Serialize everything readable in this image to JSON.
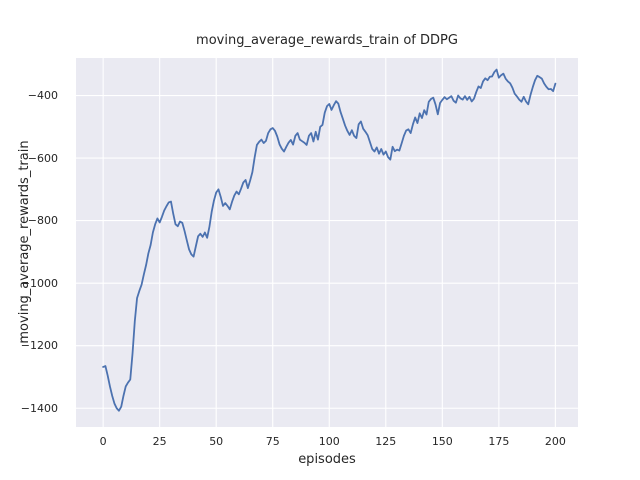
{
  "figure": {
    "title": "moving_average_rewards_train of DDPG",
    "xlabel": "episodes",
    "ylabel": "moving_average_rewards_train",
    "background_color": "#ffffff",
    "axes_background_color": "#eaeaf2",
    "grid_color": "#ffffff",
    "line_color": "#4c72b0",
    "text_color": "#262626"
  },
  "chart_data": {
    "type": "line",
    "title": "moving_average_rewards_train of DDPG",
    "xlabel": "episodes",
    "ylabel": "moving_average_rewards_train",
    "grid": true,
    "legend": false,
    "xlim": [
      -12,
      210
    ],
    "ylim": [
      -1460,
      -280
    ],
    "x_ticks": [
      0,
      25,
      50,
      75,
      100,
      125,
      150,
      175,
      200
    ],
    "y_ticks": [
      -400,
      -600,
      -800,
      -1000,
      -1200,
      -1400
    ],
    "x_tick_labels": [
      "0",
      "25",
      "50",
      "75",
      "100",
      "125",
      "150",
      "175",
      "200"
    ],
    "y_tick_labels": [
      "−400",
      "−600",
      "−800",
      "−1000",
      "−1200",
      "−1400"
    ],
    "x_start": 0,
    "x_step": 1,
    "series": [
      {
        "name": "moving_average_rewards_train",
        "values": [
          -1268,
          -1265,
          -1295,
          -1330,
          -1360,
          -1385,
          -1400,
          -1408,
          -1395,
          -1360,
          -1330,
          -1318,
          -1308,
          -1225,
          -1122,
          -1048,
          -1025,
          -1005,
          -972,
          -942,
          -905,
          -878,
          -838,
          -812,
          -793,
          -806,
          -788,
          -768,
          -754,
          -742,
          -739,
          -778,
          -812,
          -818,
          -803,
          -807,
          -833,
          -863,
          -892,
          -908,
          -915,
          -882,
          -850,
          -842,
          -852,
          -838,
          -855,
          -820,
          -772,
          -736,
          -710,
          -700,
          -724,
          -753,
          -744,
          -753,
          -764,
          -740,
          -720,
          -707,
          -716,
          -698,
          -678,
          -670,
          -696,
          -672,
          -645,
          -598,
          -558,
          -548,
          -541,
          -552,
          -545,
          -520,
          -508,
          -504,
          -513,
          -531,
          -556,
          -570,
          -579,
          -564,
          -551,
          -542,
          -557,
          -529,
          -520,
          -541,
          -546,
          -551,
          -558,
          -529,
          -520,
          -547,
          -516,
          -541,
          -500,
          -494,
          -455,
          -434,
          -427,
          -446,
          -431,
          -418,
          -426,
          -453,
          -474,
          -496,
          -513,
          -526,
          -511,
          -529,
          -536,
          -492,
          -483,
          -506,
          -516,
          -527,
          -549,
          -571,
          -579,
          -566,
          -586,
          -571,
          -589,
          -579,
          -597,
          -605,
          -564,
          -578,
          -573,
          -576,
          -553,
          -529,
          -512,
          -508,
          -520,
          -492,
          -470,
          -488,
          -457,
          -472,
          -447,
          -461,
          -420,
          -411,
          -407,
          -429,
          -460,
          -424,
          -414,
          -405,
          -412,
          -407,
          -402,
          -417,
          -423,
          -400,
          -409,
          -413,
          -402,
          -414,
          -404,
          -419,
          -410,
          -389,
          -371,
          -376,
          -355,
          -345,
          -351,
          -340,
          -339,
          -325,
          -317,
          -343,
          -335,
          -330,
          -346,
          -355,
          -361,
          -375,
          -394,
          -403,
          -413,
          -420,
          -404,
          -419,
          -428,
          -398,
          -373,
          -351,
          -337,
          -341,
          -346,
          -361,
          -372,
          -380,
          -379,
          -386,
          -362
        ]
      }
    ]
  }
}
